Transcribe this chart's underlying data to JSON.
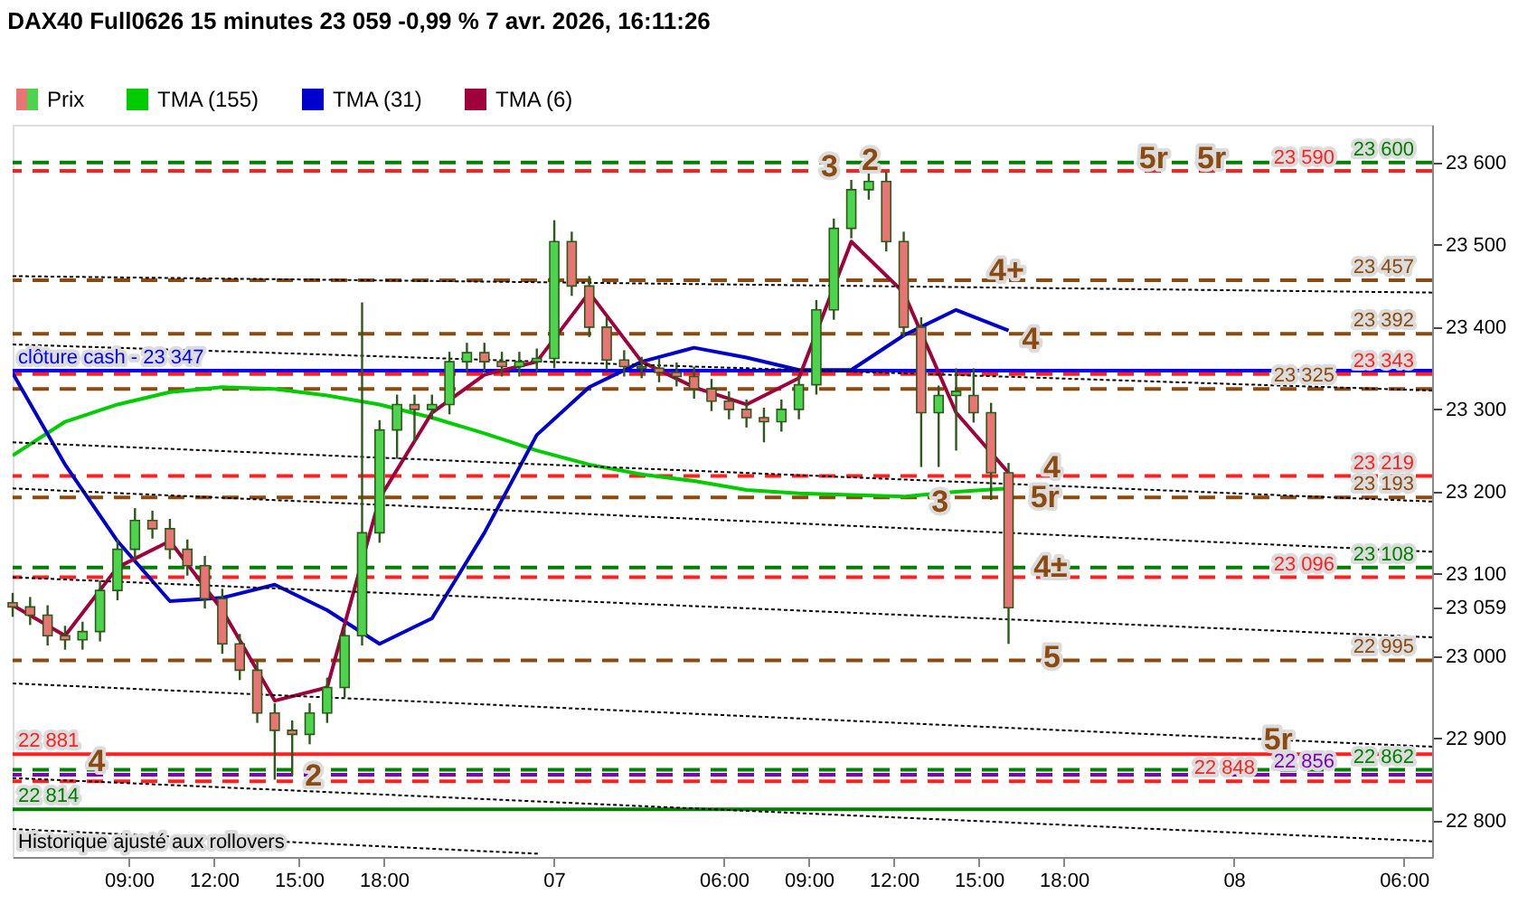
{
  "chart_data": {
    "type": "candlestick",
    "title": "DAX40 Full0626 15 minutes 23 059 -0,99 % 7 avr. 2026, 16:11:26",
    "series": [
      {
        "name": "Prix",
        "x": [
          "2026-04-06T04:54",
          "2026-04-06T05:31",
          "2026-04-06T06:08",
          "2026-04-06T06:45",
          "2026-04-06T07:22",
          "2026-04-06T07:59",
          "2026-04-06T08:36",
          "2026-04-06T09:13",
          "2026-04-06T09:50",
          "2026-04-06T10:27",
          "2026-04-06T11:04",
          "2026-04-06T11:41",
          "2026-04-06T12:18",
          "2026-04-06T12:55",
          "2026-04-06T13:32",
          "2026-04-06T14:09",
          "2026-04-06T14:46",
          "2026-04-06T15:23",
          "2026-04-06T16:00",
          "2026-04-06T16:37",
          "2026-04-06T17:14",
          "2026-04-06T17:51",
          "2026-04-06T18:28",
          "2026-04-06T19:05",
          "2026-04-06T19:42",
          "2026-04-06T20:19",
          "2026-04-06T20:56",
          "2026-04-06T21:33",
          "2026-04-06T22:10",
          "2026-04-06T22:47",
          "2026-04-06T23:24",
          "2026-04-07T00:01",
          "2026-04-07T00:38",
          "2026-04-07T01:15",
          "2026-04-07T01:52",
          "2026-04-07T02:29",
          "2026-04-07T03:06",
          "2026-04-07T03:43",
          "2026-04-07T04:20",
          "2026-04-07T04:57",
          "2026-04-07T05:34",
          "2026-04-07T06:11",
          "2026-04-07T06:48",
          "2026-04-07T07:25",
          "2026-04-07T08:02",
          "2026-04-07T08:39",
          "2026-04-07T09:16",
          "2026-04-07T09:53",
          "2026-04-07T10:30",
          "2026-04-07T11:07",
          "2026-04-07T11:44",
          "2026-04-07T12:21",
          "2026-04-07T12:58",
          "2026-04-07T13:35",
          "2026-04-07T14:12",
          "2026-04-07T14:49",
          "2026-04-07T15:26",
          "2026-04-07T16:03"
        ],
        "ohlc": [
          [
            23065,
            23077,
            23048,
            23060
          ],
          [
            23060,
            23072,
            23038,
            23050
          ],
          [
            23050,
            23062,
            23013,
            23025
          ],
          [
            23025,
            23037,
            23008,
            23020
          ],
          [
            23020,
            23042,
            23008,
            23030
          ],
          [
            23030,
            23092,
            23018,
            23080
          ],
          [
            23080,
            23142,
            23068,
            23130
          ],
          [
            23130,
            23180,
            23118,
            23165
          ],
          [
            23165,
            23177,
            23143,
            23155
          ],
          [
            23155,
            23167,
            23118,
            23130
          ],
          [
            23130,
            23142,
            23098,
            23110
          ],
          [
            23110,
            23122,
            23058,
            23070
          ],
          [
            23070,
            23082,
            23003,
            23015
          ],
          [
            23015,
            23027,
            22971,
            22983
          ],
          [
            22983,
            22995,
            22919,
            22931
          ],
          [
            22931,
            22943,
            22850,
            22910
          ],
          [
            22910,
            22922,
            22855,
            22905
          ],
          [
            22905,
            22943,
            22893,
            22931
          ],
          [
            22931,
            22974,
            22919,
            22962
          ],
          [
            22962,
            23037,
            22950,
            23025
          ],
          [
            23025,
            23430,
            23013,
            23150
          ],
          [
            23150,
            23287,
            23138,
            23275
          ],
          [
            23275,
            23318,
            23240,
            23306
          ],
          [
            23306,
            23318,
            23260,
            23300
          ],
          [
            23300,
            23318,
            23288,
            23306
          ],
          [
            23306,
            23370,
            23294,
            23358
          ],
          [
            23358,
            23381,
            23346,
            23369
          ],
          [
            23369,
            23381,
            23346,
            23358
          ],
          [
            23358,
            23370,
            23340,
            23352
          ],
          [
            23352,
            23370,
            23340,
            23358
          ],
          [
            23358,
            23374,
            23346,
            23362
          ],
          [
            23362,
            23530,
            23350,
            23504
          ],
          [
            23504,
            23516,
            23438,
            23450
          ],
          [
            23450,
            23462,
            23388,
            23400
          ],
          [
            23400,
            23412,
            23348,
            23360
          ],
          [
            23360,
            23372,
            23340,
            23352
          ],
          [
            23352,
            23364,
            23338,
            23350
          ],
          [
            23350,
            23362,
            23333,
            23345
          ],
          [
            23345,
            23357,
            23328,
            23340
          ],
          [
            23340,
            23352,
            23313,
            23325
          ],
          [
            23325,
            23337,
            23298,
            23310
          ],
          [
            23310,
            23322,
            23288,
            23300
          ],
          [
            23300,
            23312,
            23278,
            23290
          ],
          [
            23290,
            23302,
            23260,
            23285
          ],
          [
            23285,
            23312,
            23273,
            23300
          ],
          [
            23300,
            23342,
            23288,
            23330
          ],
          [
            23330,
            23433,
            23318,
            23421
          ],
          [
            23421,
            23532,
            23409,
            23520
          ],
          [
            23520,
            23579,
            23508,
            23567
          ],
          [
            23567,
            23590,
            23555,
            23577
          ],
          [
            23577,
            23589,
            23492,
            23504
          ],
          [
            23504,
            23516,
            23388,
            23400
          ],
          [
            23400,
            23412,
            23230,
            23296
          ],
          [
            23296,
            23329,
            23230,
            23317
          ],
          [
            23317,
            23350,
            23250,
            23322
          ],
          [
            23317,
            23350,
            23284,
            23296
          ],
          [
            23296,
            23308,
            23190,
            23223
          ],
          [
            23223,
            23235,
            23015,
            23059
          ]
        ],
        "colors": [
          "#e87474",
          "#e87474",
          "#e87474",
          "#e87474",
          "#4cd44c",
          "#4cd44c",
          "#4cd44c",
          "#4cd44c",
          "#e87474",
          "#e87474",
          "#e87474",
          "#e87474",
          "#e87474",
          "#e87474",
          "#e87474",
          "#e87474",
          "#e87474",
          "#4cd44c",
          "#4cd44c",
          "#4cd44c",
          "#4cd44c",
          "#4cd44c",
          "#4cd44c",
          "#e87474",
          "#4cd44c",
          "#4cd44c",
          "#4cd44c",
          "#e87474",
          "#e87474",
          "#4cd44c",
          "#4cd44c",
          "#4cd44c",
          "#e87474",
          "#e87474",
          "#e87474",
          "#e87474",
          "#e87474",
          "#e87474",
          "#e87474",
          "#e87474",
          "#e87474",
          "#e87474",
          "#e87474",
          "#e87474",
          "#4cd44c",
          "#4cd44c",
          "#4cd44c",
          "#4cd44c",
          "#4cd44c",
          "#4cd44c",
          "#e87474",
          "#e87474",
          "#e87474",
          "#4cd44c",
          "#4cd44c",
          "#e87474",
          "#e87474",
          "#e87474"
        ]
      },
      {
        "name": "TMA (155)",
        "type": "line",
        "color": "#00cc00",
        "x": [
          "2026-04-06T04:54",
          "2026-04-06T06:45",
          "2026-04-06T08:36",
          "2026-04-06T10:27",
          "2026-04-06T12:18",
          "2026-04-06T14:09",
          "2026-04-06T16:00",
          "2026-04-06T17:51",
          "2026-04-06T19:42",
          "2026-04-06T21:33",
          "2026-04-06T23:24",
          "2026-04-07T01:15",
          "2026-04-07T03:06",
          "2026-04-07T04:57",
          "2026-04-07T06:48",
          "2026-04-07T08:39",
          "2026-04-07T10:30",
          "2026-04-07T12:21",
          "2026-04-07T14:12",
          "2026-04-07T16:03"
        ],
        "values": [
          23244,
          23285,
          23306,
          23321,
          23327,
          23325,
          23317,
          23306,
          23290,
          23271,
          23250,
          23233,
          23221,
          23213,
          23202,
          23198,
          23196,
          23194,
          23200,
          23204
        ]
      },
      {
        "name": "TMA (31)",
        "type": "line",
        "color": "#0000cc",
        "x": [
          "2026-04-06T04:54",
          "2026-04-06T06:45",
          "2026-04-06T08:36",
          "2026-04-06T10:27",
          "2026-04-06T12:18",
          "2026-04-06T14:09",
          "2026-04-06T16:00",
          "2026-04-06T17:51",
          "2026-04-06T19:42",
          "2026-04-06T21:33",
          "2026-04-06T23:24",
          "2026-04-07T01:15",
          "2026-04-07T03:06",
          "2026-04-07T04:57",
          "2026-04-07T06:48",
          "2026-04-07T08:39",
          "2026-04-07T10:30",
          "2026-04-07T12:21",
          "2026-04-07T14:12",
          "2026-04-07T16:03"
        ],
        "values": [
          23344,
          23233,
          23140,
          23067,
          23071,
          23087,
          23056,
          23015,
          23046,
          23150,
          23269,
          23327,
          23358,
          23375,
          23363,
          23348,
          23348,
          23390,
          23421,
          23396
        ]
      },
      {
        "name": "TMA (6)",
        "type": "line",
        "color": "#a0003c",
        "x": [
          "2026-04-06T04:54",
          "2026-04-06T06:45",
          "2026-04-06T08:36",
          "2026-04-06T10:27",
          "2026-04-06T12:18",
          "2026-04-06T14:09",
          "2026-04-06T16:00",
          "2026-04-06T17:51",
          "2026-04-06T19:42",
          "2026-04-06T21:33",
          "2026-04-06T23:24",
          "2026-04-07T01:15",
          "2026-04-07T03:06",
          "2026-04-07T04:57",
          "2026-04-07T06:48",
          "2026-04-07T08:39",
          "2026-04-07T10:30",
          "2026-04-07T12:21",
          "2026-04-07T14:12",
          "2026-04-07T16:03"
        ],
        "values": [
          23062,
          23025,
          23108,
          23140,
          23056,
          22946,
          22962,
          23192,
          23296,
          23342,
          23358,
          23442,
          23358,
          23327,
          23306,
          23338,
          23504,
          23442,
          23296,
          23223
        ]
      },
      {
        "type": "line",
        "line_style": "dotted",
        "color": "#000000",
        "x": [
          "2026-04-06T04:54",
          "2026-04-08T07:00"
        ],
        "values": [
          23462,
          23442
        ]
      },
      {
        "type": "line",
        "line_style": "dotted",
        "color": "#000000",
        "x": [
          "2026-04-06T04:54",
          "2026-04-08T07:00"
        ],
        "values": [
          23379,
          23323
        ]
      },
      {
        "type": "line",
        "line_style": "dotted",
        "color": "#000000",
        "x": [
          "2026-04-06T04:54",
          "2026-04-08T07:00"
        ],
        "values": [
          23260,
          23188
        ]
      },
      {
        "type": "line",
        "line_style": "dotted",
        "color": "#000000",
        "x": [
          "2026-04-06T04:54",
          "2026-04-08T07:00"
        ],
        "values": [
          23204,
          23127
        ]
      },
      {
        "type": "line",
        "line_style": "dotted",
        "color": "#000000",
        "x": [
          "2026-04-06T04:54",
          "2026-04-08T07:00"
        ],
        "values": [
          23096,
          23023
        ]
      },
      {
        "type": "line",
        "line_style": "dotted",
        "color": "#000000",
        "x": [
          "2026-04-06T04:54",
          "2026-04-08T07:00"
        ],
        "values": [
          22967,
          22890
        ]
      },
      {
        "type": "line",
        "line_style": "dotted",
        "color": "#000000",
        "x": [
          "2026-04-06T04:54",
          "2026-04-08T07:00"
        ],
        "values": [
          22852,
          22775
        ]
      },
      {
        "type": "line",
        "line_style": "dotted",
        "color": "#000000",
        "x": [
          "2026-04-06T04:54",
          "2026-04-06T23:26"
        ],
        "values": [
          22790,
          22760
        ]
      }
    ],
    "ref_lines": [
      {
        "axis": "y",
        "value": 23600,
        "label": "23 600",
        "color": "#008000",
        "line_style": "dashed"
      },
      {
        "axis": "y",
        "value": 23590,
        "label": "23 590",
        "color": "#ff2020",
        "line_style": "dashed"
      },
      {
        "axis": "y",
        "value": 23457,
        "label": "23 457",
        "color": "#8b4a0f",
        "line_style": "dashed"
      },
      {
        "axis": "y",
        "value": 23392,
        "label": "23 392",
        "color": "#8b4a0f",
        "line_style": "dashed"
      },
      {
        "axis": "y",
        "value": 23347,
        "label": "clôture cash -  23 347",
        "color": "#0000ff",
        "line_style": "solid"
      },
      {
        "axis": "y",
        "value": 23343,
        "label": "23 343",
        "color": "#ff2020",
        "line_style": "dashed"
      },
      {
        "axis": "y",
        "value": 23325,
        "label": "23 325",
        "color": "#8b4a0f",
        "line_style": "dashed"
      },
      {
        "axis": "y",
        "value": 23219,
        "label": "23 219",
        "color": "#ff2020",
        "line_style": "dashed"
      },
      {
        "axis": "y",
        "value": 23193,
        "label": "23 193",
        "color": "#8b4a0f",
        "line_style": "dashed"
      },
      {
        "axis": "y",
        "value": 23108,
        "label": "23 108",
        "color": "#008000",
        "line_style": "dashed"
      },
      {
        "axis": "y",
        "value": 23096,
        "label": "23 096",
        "color": "#ff2020",
        "line_style": "dashed"
      },
      {
        "axis": "y",
        "value": 22995,
        "label": "22 995",
        "color": "#8b4a0f",
        "line_style": "dashed"
      },
      {
        "axis": "y",
        "value": 22881,
        "label": "22 881",
        "color": "#ff2020",
        "line_style": "solid"
      },
      {
        "axis": "y",
        "value": 22862,
        "label": "22 862",
        "color": "#008000",
        "line_style": "dashed"
      },
      {
        "axis": "y",
        "value": 22856,
        "label": "22 856",
        "color": "#7a00c0",
        "line_style": "dashed"
      },
      {
        "axis": "y",
        "value": 22848,
        "label": "22 848",
        "color": "#ff2020",
        "line_style": "dashed"
      },
      {
        "axis": "y",
        "value": 22814,
        "label": "22 814",
        "color": "#008000",
        "line_style": "solid"
      }
    ],
    "annotations": [
      {
        "text": "3",
        "x": "2026-04-07T09:44",
        "y": 23594
      },
      {
        "text": "2",
        "x": "2026-04-07T11:10",
        "y": 23602
      },
      {
        "text": "5r",
        "x": "2026-04-07T21:10",
        "y": 23604
      },
      {
        "text": "5r",
        "x": "2026-04-07T23:13",
        "y": 23604
      },
      {
        "text": "4+",
        "x": "2026-04-07T15:59",
        "y": 23468
      },
      {
        "text": "4",
        "x": "2026-04-07T16:50",
        "y": 23385
      },
      {
        "text": "4",
        "x": "2026-04-07T17:35",
        "y": 23229
      },
      {
        "text": "3",
        "x": "2026-04-07T13:38",
        "y": 23187
      },
      {
        "text": "5r",
        "x": "2026-04-07T17:20",
        "y": 23192
      },
      {
        "text": "4±",
        "x": "2026-04-07T17:32",
        "y": 23108
      },
      {
        "text": "5",
        "x": "2026-04-07T17:35",
        "y": 22998
      },
      {
        "text": "2",
        "x": "2026-04-06T15:31",
        "y": 22854
      },
      {
        "text": "4",
        "x": "2026-04-06T07:52",
        "y": 22871
      },
      {
        "text": "5r",
        "x": "2026-04-08T01:34",
        "y": 22898
      },
      "Historique ajusté aux rollovers"
    ],
    "xlim": [
      "2026-04-06T04:54",
      "2026-04-08T07:00"
    ],
    "ylim": [
      22756,
      23646
    ],
    "xticks": [
      {
        "value": "2026-04-06T09:00",
        "label": "09:00"
      },
      {
        "value": "2026-04-06T12:00",
        "label": "12:00"
      },
      {
        "value": "2026-04-06T15:00",
        "label": "15:00"
      },
      {
        "value": "2026-04-06T18:00",
        "label": "18:00"
      },
      {
        "value": "2026-04-07",
        "label": "07"
      },
      {
        "value": "2026-04-07T06:00",
        "label": "06:00"
      },
      {
        "value": "2026-04-07T09:00",
        "label": "09:00"
      },
      {
        "value": "2026-04-07T12:00",
        "label": "12:00"
      },
      {
        "value": "2026-04-07T15:00",
        "label": "15:00"
      },
      {
        "value": "2026-04-07T18:00",
        "label": "18:00"
      },
      {
        "value": "2026-04-08",
        "label": "08"
      },
      {
        "value": "2026-04-08T06:00",
        "label": "06:00"
      }
    ],
    "yticks": [
      {
        "value": 22800,
        "label": "22 800"
      },
      {
        "value": 22900,
        "label": "22 900"
      },
      {
        "value": 23000,
        "label": "23 000"
      },
      {
        "value": 23059,
        "label": "23 059"
      },
      {
        "value": 23100,
        "label": "23 100"
      },
      {
        "value": 23200,
        "label": "23 200"
      },
      {
        "value": 23300,
        "label": "23 300"
      },
      {
        "value": 23400,
        "label": "23 400"
      },
      {
        "value": 23500,
        "label": "23 500"
      },
      {
        "value": 23600,
        "label": "23 600"
      }
    ],
    "legend": "top left",
    "grid": false
  }
}
